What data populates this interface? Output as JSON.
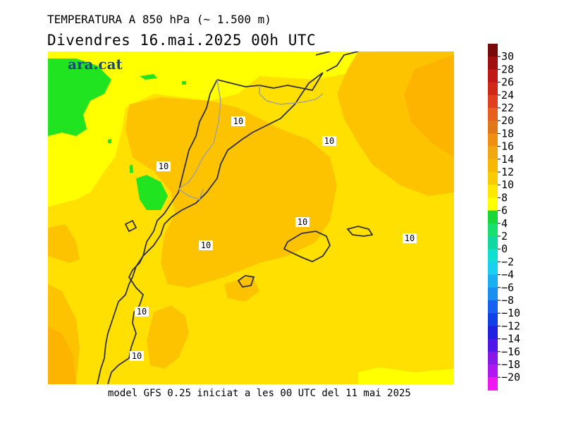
{
  "header": {
    "title": "TEMPERATURA A 850 hPa (~ 1.500 m)",
    "subtitle": "Divendres  16.mai.2025 00h UTC"
  },
  "map": {
    "logo": "ara.cat",
    "contour_labels": [
      "10",
      "10",
      "10",
      "10",
      "10",
      "10",
      "10",
      "10"
    ]
  },
  "footer": {
    "caption": "model GFS 0.25 iniciat a les 00 UTC del 11 mai 2025"
  },
  "legend": {
    "labels": [
      "30",
      "28",
      "26",
      "24",
      "22",
      "20",
      "18",
      "16",
      "14",
      "12",
      "10",
      "8",
      "6",
      "4",
      "2",
      "0",
      "−2",
      "−4",
      "−6",
      "−8",
      "−10",
      "−12",
      "−14",
      "−16",
      "−18",
      "−20"
    ],
    "colors": [
      "#7a0a0a",
      "#a01010",
      "#c01818",
      "#d02818",
      "#e04020",
      "#e86020",
      "#e07818",
      "#f09010",
      "#f0a810",
      "#f8b800",
      "#f8cc00",
      "#ffe800",
      "#ffff00",
      "#18d838",
      "#18e070",
      "#10d8a0",
      "#10e0d0",
      "#18d0f0",
      "#18b0f0",
      "#1890f0",
      "#1860f0",
      "#1040e8",
      "#2020e0",
      "#5018e8",
      "#8818e8",
      "#b018f0",
      "#f018f0"
    ],
    "palette_map": {
      "warm_orange": "#fdb400",
      "orange": "#fdc300",
      "gold": "#fdd100",
      "yellow_orange": "#ffe600",
      "yellow": "#ffff00",
      "green": "#21e421"
    }
  }
}
